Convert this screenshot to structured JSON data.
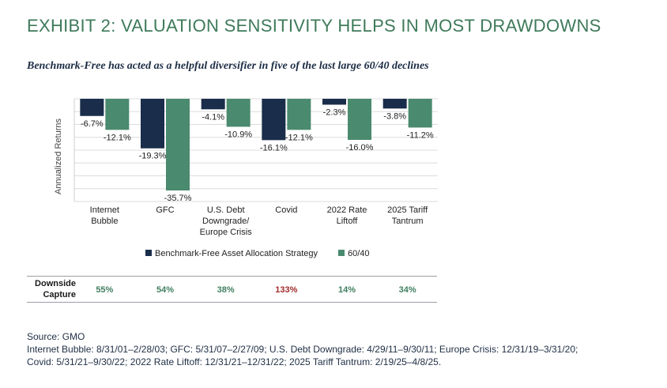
{
  "title": "EXHIBIT 2: VALUATION SENSITIVITY HELPS IN MOST DRAWDOWNS",
  "subtitle": "Benchmark-Free has acted as a helpful diversifier in five of the last large 60/40 declines",
  "chart_data": {
    "type": "bar",
    "categories": [
      [
        "Internet",
        "Bubble"
      ],
      [
        "GFC"
      ],
      [
        "U.S. Debt",
        "Downgrade/",
        "Europe Crisis"
      ],
      [
        "Covid"
      ],
      [
        "2022 Rate",
        "Liftoff"
      ],
      [
        "2025 Tariff",
        "Tantrum"
      ]
    ],
    "series": [
      {
        "name": "Benchmark-Free Asset Allocation Strategy",
        "values": [
          -6.7,
          -19.3,
          -4.1,
          -16.1,
          -2.3,
          -3.8
        ],
        "color": "#1a2d4a"
      },
      {
        "name": "60/40",
        "values": [
          -12.1,
          -35.7,
          -10.9,
          -12.1,
          -16.0,
          -11.2
        ],
        "color": "#4a8a6e"
      }
    ],
    "data_labels": [
      [
        "-6.7%",
        "-19.3%",
        "-4.1%",
        "-16.1%",
        "-2.3%",
        "-3.8%"
      ],
      [
        "-12.1%",
        "-35.7%",
        "-10.9%",
        "-12.1%",
        "-16.0%",
        "-11.2%"
      ]
    ],
    "ylabel": "Annualized Returns",
    "ylim": [
      -40,
      0
    ],
    "grid": true,
    "legend_position": "bottom-center"
  },
  "downside_capture": {
    "label_line1": "Downside",
    "label_line2": "Capture",
    "values": [
      "55%",
      "54%",
      "38%",
      "133%",
      "14%",
      "34%"
    ],
    "colors": [
      "#3f7f5f",
      "#3f7f5f",
      "#3f7f5f",
      "#a12a2a",
      "#3f7f5f",
      "#3f7f5f"
    ]
  },
  "source": {
    "line1": "Source: GMO",
    "line2": "Internet Bubble: 8/31/01–2/28/03; GFC: 5/31/07–2/27/09; U.S. Debt Downgrade: 4/29/11–9/30/11; Europe Crisis: 12/31/19–3/31/20;",
    "line3": "Covid: 5/31/21–9/30/22; 2022 Rate Liftoff: 12/31/21–12/31/22; 2025 Tariff Tantrum: 2/19/25–4/8/25."
  }
}
